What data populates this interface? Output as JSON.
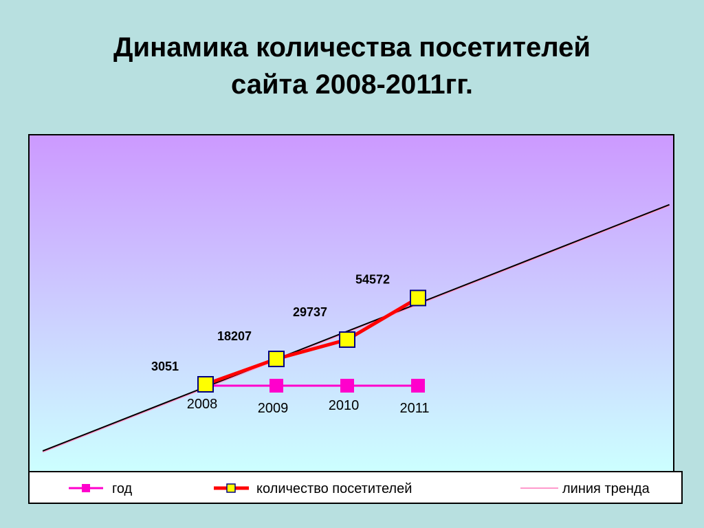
{
  "title": {
    "line1": "Динамика количества посетителей",
    "line2": "сайта 2008-2011гг."
  },
  "colors": {
    "background": "#b8e0e0",
    "plot_top": "#cc99ff",
    "plot_bottom": "#ccffff",
    "year_series": "#ff00cc",
    "visitors_series": "#ff0000",
    "visitors_marker_fill": "#ffff00",
    "visitors_marker_border": "#000080",
    "trend": "#000000",
    "trend_legend": "#ff99cc"
  },
  "chart_data": {
    "type": "line",
    "categories": [
      "2008",
      "2009",
      "2010",
      "2011"
    ],
    "series": [
      {
        "name": "год",
        "values": [
          2008,
          2009,
          2010,
          2011
        ]
      },
      {
        "name": "количество посетителей",
        "values": [
          3051,
          18207,
          29737,
          54572
        ],
        "data_labels": [
          "3051",
          "18207",
          "29737",
          "54572"
        ]
      },
      {
        "name": "линия тренда",
        "type": "linear trend of количество посетителей"
      }
    ],
    "axes": "hidden",
    "grid": false,
    "legend_position": "bottom"
  }
}
